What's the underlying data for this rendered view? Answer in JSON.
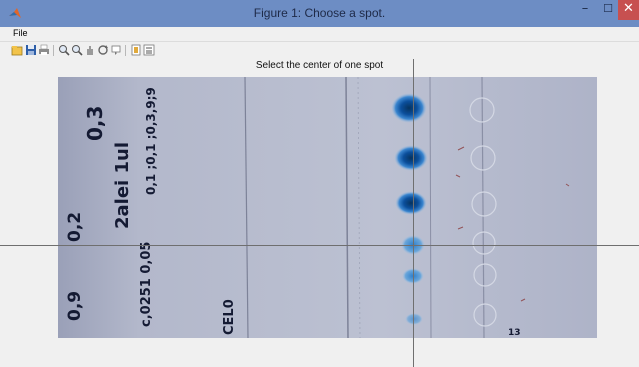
{
  "window": {
    "title": "Figure 1: Choose a spot.",
    "icon": "matlab-icon",
    "controls": [
      "minimize-icon",
      "maximize-icon",
      "close-icon"
    ]
  },
  "menu": {
    "file_label": "File"
  },
  "toolbar": {
    "items": [
      "new-figure-icon",
      "open-file-icon",
      "save-icon",
      "print-icon",
      "zoom-in-icon",
      "zoom-out-icon",
      "pan-icon",
      "rotate-3d-icon",
      "data-cursor-icon",
      "colorbar-icon",
      "legend-icon"
    ]
  },
  "axes": {
    "title": "Select the center of one spot"
  },
  "plate_text": {
    "line1": "0,3",
    "line2": "2alei 1ul",
    "line3": "0,1 ;0,1 ;0,3,9;9",
    "line4": "0,2",
    "line5": "c,0251 0,05",
    "line6": "0,9",
    "line7": "CEL0",
    "line8": "13"
  },
  "colors": {
    "titlebar": "#6d8dc4",
    "plate": "#b7bccb",
    "spot": "#0b4f9c"
  }
}
